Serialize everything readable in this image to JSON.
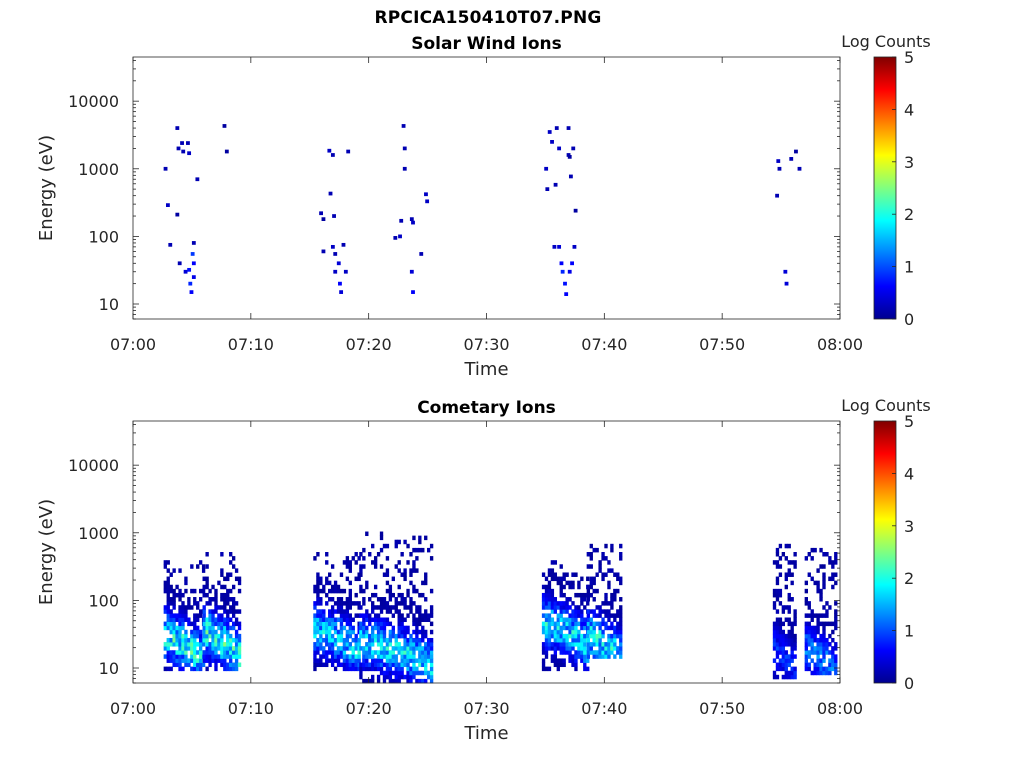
{
  "page_title": "RPCICA150410T07.PNG",
  "colors": {
    "colormap": [
      "#00008f",
      "#0000ff",
      "#0080ff",
      "#00ffff",
      "#80ff80",
      "#ffff00",
      "#ff8000",
      "#ff0000",
      "#800000"
    ],
    "axis": "#262626"
  },
  "chart_data": [
    {
      "type": "heatmap",
      "title": "Solar Wind Ions",
      "xlabel": "Time",
      "ylabel": "Energy (eV)",
      "x_ticks": [
        "07:00",
        "07:10",
        "07:20",
        "07:30",
        "07:40",
        "07:50",
        "08:00"
      ],
      "xlim_minutes": [
        0,
        60
      ],
      "y_scale": "log",
      "ylim": [
        6,
        45000
      ],
      "y_ticks": [
        10,
        100,
        1000,
        10000
      ],
      "y_tick_labels": [
        "10",
        "100",
        "1000",
        "10000"
      ],
      "colorbar": {
        "label": "Log Counts",
        "range": [
          0,
          5
        ],
        "ticks": [
          "0",
          "1",
          "2",
          "3",
          "4",
          "5"
        ]
      },
      "grid": false,
      "cells": [
        [
          2.6,
          1000,
          0.2
        ],
        [
          2.8,
          290,
          0.3
        ],
        [
          3.0,
          75,
          0.2
        ],
        [
          3.6,
          4000,
          0.2
        ],
        [
          3.7,
          2000,
          0.2
        ],
        [
          3.6,
          210,
          0.1
        ],
        [
          3.8,
          40,
          0.2
        ],
        [
          4.0,
          2400,
          0.2
        ],
        [
          4.1,
          1800,
          0.2
        ],
        [
          4.3,
          30,
          0.4
        ],
        [
          4.5,
          2400,
          0.2
        ],
        [
          4.6,
          1700,
          0.3
        ],
        [
          4.6,
          32,
          0.7
        ],
        [
          4.7,
          20,
          0.8
        ],
        [
          4.8,
          15,
          0.6
        ],
        [
          4.9,
          55,
          0.9
        ],
        [
          5.0,
          40,
          0.6
        ],
        [
          5.0,
          80,
          0.2
        ],
        [
          5.0,
          25,
          0.5
        ],
        [
          5.3,
          700,
          0.2
        ],
        [
          7.6,
          4300,
          0.1
        ],
        [
          7.8,
          1800,
          0.1
        ],
        [
          15.8,
          220,
          0.2
        ],
        [
          16.0,
          180,
          0.1
        ],
        [
          16.0,
          60,
          0.2
        ],
        [
          16.5,
          1850,
          0.3
        ],
        [
          16.8,
          1600,
          0.2
        ],
        [
          16.6,
          430,
          0.2
        ],
        [
          16.9,
          200,
          0.2
        ],
        [
          16.8,
          70,
          0.3
        ],
        [
          17.0,
          55,
          0.2
        ],
        [
          17.0,
          30,
          0.3
        ],
        [
          17.3,
          40,
          0.4
        ],
        [
          17.4,
          20,
          0.6
        ],
        [
          17.5,
          15,
          0.4
        ],
        [
          17.7,
          75,
          0.2
        ],
        [
          17.9,
          30,
          0.3
        ],
        [
          18.1,
          1800,
          0.2
        ],
        [
          22.1,
          95,
          0.2
        ],
        [
          22.5,
          100,
          0.3
        ],
        [
          22.6,
          170,
          0.2
        ],
        [
          22.8,
          4300,
          0.2
        ],
        [
          22.9,
          2000,
          0.2
        ],
        [
          22.9,
          1000,
          0.2
        ],
        [
          23.5,
          180,
          0.2
        ],
        [
          23.6,
          160,
          0.3
        ],
        [
          23.5,
          30,
          0.4
        ],
        [
          23.6,
          15,
          0.6
        ],
        [
          24.3,
          55,
          0.2
        ],
        [
          24.7,
          420,
          0.3
        ],
        [
          24.8,
          330,
          0.3
        ],
        [
          34.9,
          1000,
          0.3
        ],
        [
          35.0,
          500,
          0.2
        ],
        [
          35.2,
          3500,
          0.3
        ],
        [
          35.4,
          2500,
          0.3
        ],
        [
          35.6,
          70,
          0.3
        ],
        [
          35.7,
          580,
          0.2
        ],
        [
          35.8,
          4000,
          0.2
        ],
        [
          36.0,
          2000,
          0.3
        ],
        [
          36.0,
          70,
          0.4
        ],
        [
          36.2,
          40,
          0.6
        ],
        [
          36.3,
          30,
          0.8
        ],
        [
          36.5,
          20,
          0.7
        ],
        [
          36.6,
          14,
          0.6
        ],
        [
          36.8,
          1600,
          0.2
        ],
        [
          36.8,
          4000,
          0.2
        ],
        [
          36.9,
          1500,
          0.1
        ],
        [
          36.9,
          30,
          0.5
        ],
        [
          37.0,
          770,
          0.2
        ],
        [
          37.1,
          40,
          0.6
        ],
        [
          37.2,
          2000,
          0.2
        ],
        [
          37.3,
          70,
          0.3
        ],
        [
          37.4,
          240,
          0.1
        ],
        [
          54.5,
          400,
          0.2
        ],
        [
          54.6,
          1300,
          0.3
        ],
        [
          54.7,
          1000,
          0.2
        ],
        [
          55.2,
          30,
          0.4
        ],
        [
          55.3,
          20,
          0.4
        ],
        [
          55.7,
          1400,
          0.2
        ],
        [
          56.1,
          1800,
          0.1
        ],
        [
          56.4,
          1000,
          0.2
        ]
      ]
    },
    {
      "type": "heatmap",
      "title": "Cometary Ions",
      "xlabel": "Time",
      "ylabel": "Energy (eV)",
      "x_ticks": [
        "07:00",
        "07:10",
        "07:20",
        "07:30",
        "07:40",
        "07:50",
        "08:00"
      ],
      "xlim_minutes": [
        0,
        60
      ],
      "y_scale": "log",
      "ylim": [
        6,
        45000
      ],
      "y_ticks": [
        10,
        100,
        1000,
        10000
      ],
      "y_tick_labels": [
        "10",
        "100",
        "1000",
        "10000"
      ],
      "colorbar": {
        "label": "Log Counts",
        "range": [
          0,
          5
        ],
        "ticks": [
          "0",
          "1",
          "2",
          "3",
          "4",
          "5"
        ]
      },
      "grid": false,
      "bursts": [
        {
          "t": [
            2.6,
            5.9
          ],
          "emin": 9,
          "emax": 400,
          "core": 22,
          "peak": 2.1
        },
        {
          "t": [
            5.9,
            9.0
          ],
          "emin": 9,
          "emax": 550,
          "core": 25,
          "peak": 2.2
        },
        {
          "t": [
            15.3,
            19.2
          ],
          "emin": 9,
          "emax": 550,
          "core": 28,
          "peak": 1.8
        },
        {
          "t": [
            19.2,
            25.3
          ],
          "emin": 6,
          "emax": 1100,
          "core": 18,
          "peak": 1.9
        },
        {
          "t": [
            34.7,
            38.5
          ],
          "emin": 9,
          "emax": 400,
          "core": 35,
          "peak": 1.9
        },
        {
          "t": [
            38.5,
            41.5
          ],
          "emin": 13,
          "emax": 650,
          "core": 22,
          "peak": 2.0
        },
        {
          "t": [
            54.3,
            56.2
          ],
          "emin": 7,
          "emax": 700,
          "core": 14,
          "peak": 0.9
        },
        {
          "t": [
            57.0,
            59.7
          ],
          "emin": 8,
          "emax": 620,
          "core": 14,
          "peak": 1.3
        }
      ]
    }
  ]
}
